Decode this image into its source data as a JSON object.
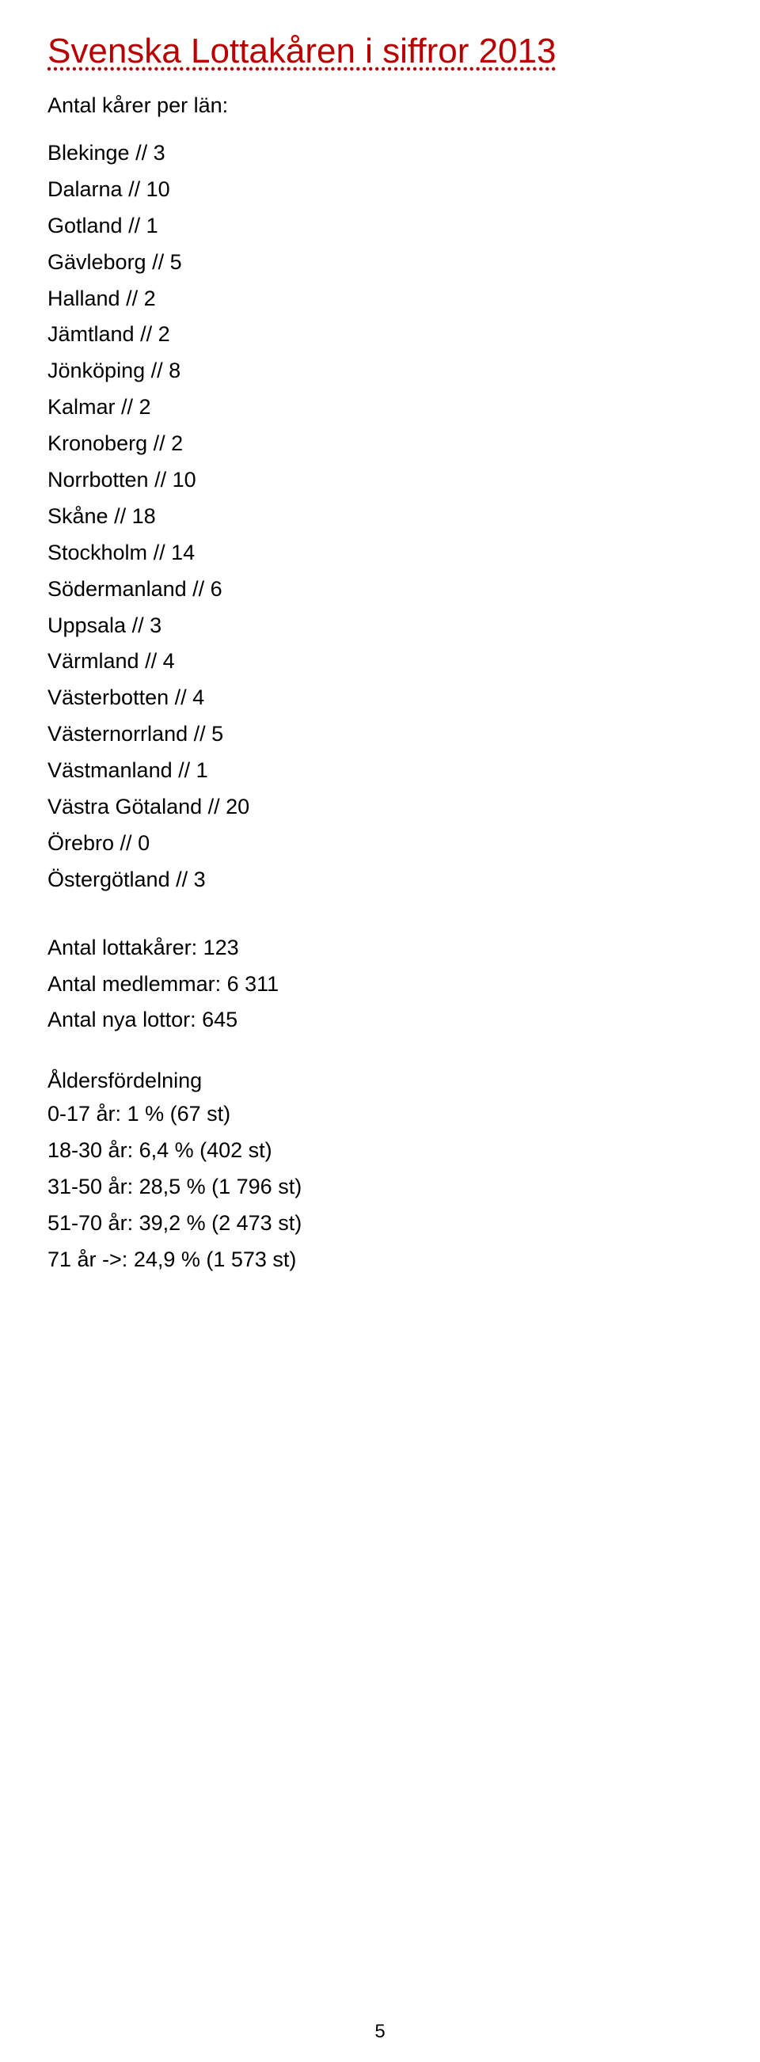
{
  "title": "Svenska Lottakåren i siffror 2013",
  "subtitle": "Antal kårer per län:",
  "counties": [
    {
      "name": "Blekinge",
      "count": "3"
    },
    {
      "name": "Dalarna",
      "count": "10"
    },
    {
      "name": "Gotland",
      "count": "1"
    },
    {
      "name": "Gävleborg",
      "count": "5"
    },
    {
      "name": "Halland",
      "count": "2"
    },
    {
      "name": "Jämtland",
      "count": "2"
    },
    {
      "name": "Jönköping",
      "count": "8"
    },
    {
      "name": "Kalmar",
      "count": "2"
    },
    {
      "name": "Kronoberg",
      "count": "2"
    },
    {
      "name": "Norrbotten",
      "count": "10"
    },
    {
      "name": "Skåne",
      "count": "18"
    },
    {
      "name": "Stockholm",
      "count": "14"
    },
    {
      "name": "Södermanland",
      "count": "6"
    },
    {
      "name": "Uppsala",
      "count": "3"
    },
    {
      "name": "Värmland",
      "count": "4"
    },
    {
      "name": "Västerbotten",
      "count": "4"
    },
    {
      "name": "Västernorrland",
      "count": "5"
    },
    {
      "name": "Västmanland",
      "count": "1"
    },
    {
      "name": "Västra Götaland",
      "count": "20"
    },
    {
      "name": "Örebro",
      "count": "0"
    },
    {
      "name": "Östergötland",
      "count": "3"
    }
  ],
  "totals": {
    "lottakarer_label": "Antal lottakårer:",
    "lottakarer_value": "123",
    "medlemmar_label": "Antal medlemmar:",
    "medlemmar_value": "6 311",
    "nya_lottor_label": "Antal nya lottor:",
    "nya_lottor_value": "645"
  },
  "age": {
    "heading": "Åldersfördelning",
    "rows": [
      {
        "label": "0-17 år:",
        "pct": "1 %",
        "count": "(67 st)"
      },
      {
        "label": "18-30 år:",
        "pct": "6,4 %",
        "count": "(402 st)"
      },
      {
        "label": "31-50 år:",
        "pct": "28,5 %",
        "count": "(1 796 st)"
      },
      {
        "label": "51-70 år:",
        "pct": "39,2 %",
        "count": "(2 473 st)"
      },
      {
        "label": "71 år ->:",
        "pct": "24,9 %",
        "count": "(1 573 st)"
      }
    ]
  },
  "sep": " // ",
  "page_number": "5"
}
